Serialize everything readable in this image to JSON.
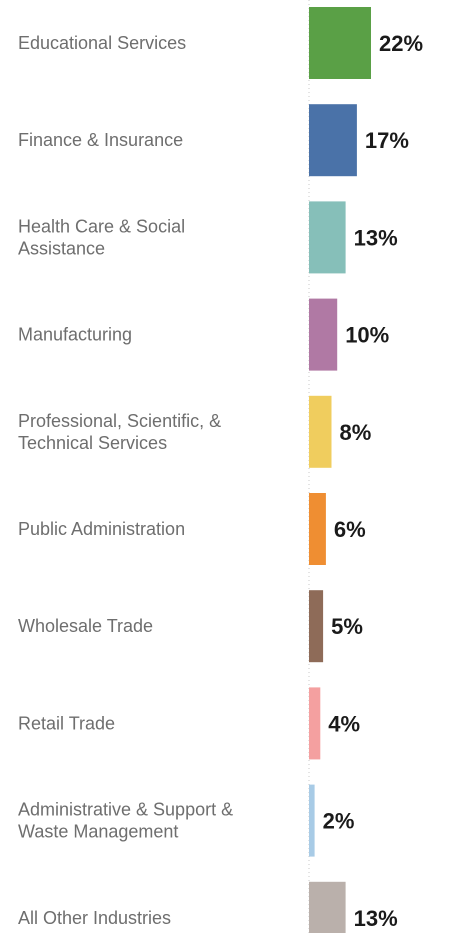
{
  "chart_data": {
    "type": "bar",
    "orientation": "horizontal",
    "categories": [
      [
        "Educational Services"
      ],
      [
        "Finance & Insurance"
      ],
      [
        "Health Care & Social",
        "Assistance"
      ],
      [
        "Manufacturing"
      ],
      [
        "Professional, Scientific, &",
        "Technical Services"
      ],
      [
        "Public Administration"
      ],
      [
        "Wholesale Trade"
      ],
      [
        "Retail Trade"
      ],
      [
        "Administrative & Support &",
        "Waste Management"
      ],
      [
        "All Other Industries"
      ]
    ],
    "values": [
      22,
      17,
      13,
      10,
      8,
      6,
      5,
      4,
      2,
      13
    ],
    "value_labels": [
      "22%",
      "17%",
      "13%",
      "10%",
      "8%",
      "6%",
      "5%",
      "4%",
      "2%",
      "13%"
    ],
    "colors": [
      "#5aa046",
      "#4a72a8",
      "#86bfb9",
      "#b079a4",
      "#f0cd5e",
      "#ef8e32",
      "#8e6b58",
      "#f4a0a0",
      "#a8cbe6",
      "#bab0ab"
    ],
    "title": "",
    "xlabel": "",
    "ylabel": "",
    "xlim": [
      0,
      22
    ],
    "grid": false,
    "legend": "none"
  }
}
